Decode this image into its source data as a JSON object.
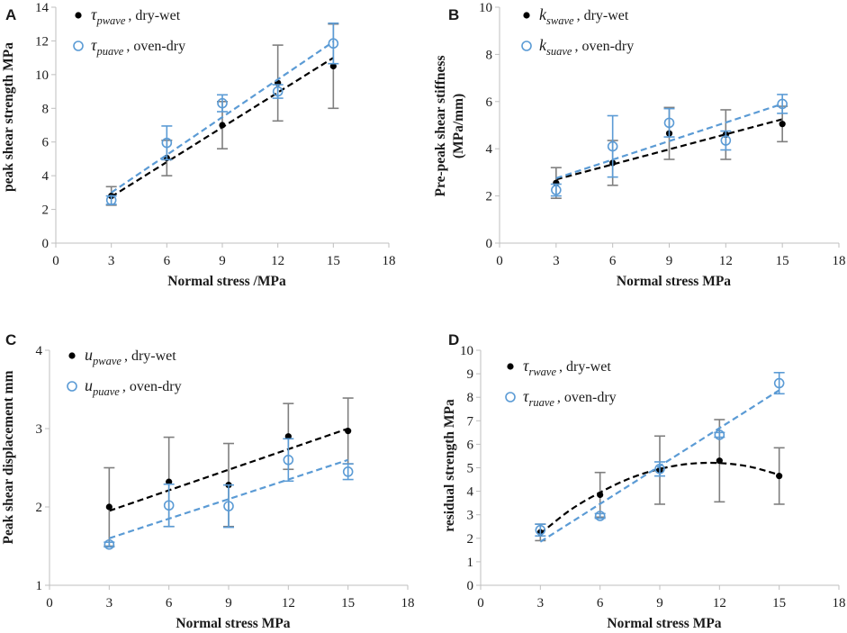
{
  "colors": {
    "dry_wet": "#000000",
    "oven_dry": "#5b9bd5",
    "error_bar": "#7f7f7f",
    "axis": "#bfbfbf"
  },
  "chart_data": [
    {
      "panel": "A",
      "type": "scatter",
      "xlabel": "Normal stress /MPa",
      "ylabel": "peak shear strength MPa",
      "xlim": [
        0,
        18
      ],
      "ylim": [
        0,
        14
      ],
      "xticks": [
        "0",
        "3",
        "6",
        "9",
        "12",
        "15",
        "18"
      ],
      "yticks": [
        "0",
        "2",
        "4",
        "6",
        "8",
        "10",
        "12",
        "14"
      ],
      "legend_position": "top-left",
      "series": [
        {
          "name": "dry-wet",
          "symbol": "τ",
          "subscript": "pwave",
          "label": ", dry-wet",
          "x": [
            3,
            6,
            9,
            12,
            15
          ],
          "y": [
            2.8,
            5.05,
            7.0,
            9.5,
            10.5
          ],
          "err": [
            0.55,
            1.05,
            1.4,
            2.25,
            2.5
          ],
          "trend": "linear",
          "trend_points": [
            [
              3,
              2.75
            ],
            [
              15,
              11.0
            ]
          ]
        },
        {
          "name": "oven-dry",
          "symbol": "τ",
          "subscript": "puave",
          "label": ", oven-dry",
          "x": [
            3,
            6,
            9,
            12,
            15
          ],
          "y": [
            2.55,
            5.95,
            8.3,
            9.0,
            11.85
          ],
          "err": [
            0.25,
            1.0,
            0.5,
            0.4,
            1.2
          ],
          "trend": "linear",
          "trend_points": [
            [
              3,
              3.0
            ],
            [
              15,
              11.95
            ]
          ]
        }
      ]
    },
    {
      "panel": "B",
      "type": "scatter",
      "xlabel": "Normal stress MPa",
      "ylabel": "Pre-peak shear stiffness (MPa/mm)",
      "ylabel_lines": [
        "Pre-peak shear stiffness",
        "(MPa/mm)"
      ],
      "xlim": [
        0,
        18
      ],
      "ylim": [
        0,
        10
      ],
      "xticks": [
        "0",
        "3",
        "6",
        "9",
        "12",
        "15",
        "18"
      ],
      "yticks": [
        "0",
        "2",
        "4",
        "6",
        "8",
        "10"
      ],
      "legend_position": "top-left",
      "series": [
        {
          "name": "dry-wet",
          "symbol": "k",
          "subscript": "swave",
          "label": ", dry-wet",
          "x": [
            3,
            6,
            9,
            12,
            15
          ],
          "y": [
            2.55,
            3.4,
            4.65,
            4.6,
            5.05
          ],
          "err": [
            0.65,
            0.95,
            1.1,
            1.05,
            0.75
          ],
          "trend": "linear",
          "trend_points": [
            [
              3,
              2.7
            ],
            [
              15,
              5.25
            ]
          ]
        },
        {
          "name": "oven-dry",
          "symbol": "k",
          "subscript": "suave",
          "label": ", oven-dry",
          "x": [
            3,
            6,
            9,
            12,
            15
          ],
          "y": [
            2.25,
            4.1,
            5.1,
            4.35,
            5.9
          ],
          "err": [
            0.25,
            1.3,
            0.6,
            0.4,
            0.4
          ],
          "trend": "linear",
          "trend_points": [
            [
              3,
              2.75
            ],
            [
              15,
              5.9
            ]
          ]
        }
      ]
    },
    {
      "panel": "C",
      "type": "scatter",
      "xlabel": "Normal stress MPa",
      "ylabel": "Peak shear displacement mm",
      "xlim": [
        0,
        18
      ],
      "ylim": [
        1,
        4
      ],
      "xticks": [
        "0",
        "3",
        "6",
        "9",
        "12",
        "15",
        "18"
      ],
      "yticks": [
        "1",
        "2",
        "3",
        "4"
      ],
      "legend_position": "top-left",
      "series": [
        {
          "name": "dry-wet",
          "symbol": "u",
          "subscript": "pwave",
          "label": ", dry-wet",
          "x": [
            3,
            6,
            9,
            12,
            15
          ],
          "y": [
            2.0,
            2.32,
            2.28,
            2.9,
            2.97
          ],
          "err": [
            0.5,
            0.57,
            0.53,
            0.42,
            0.42
          ],
          "trend": "linear",
          "trend_points": [
            [
              3,
              1.95
            ],
            [
              15,
              3.0
            ]
          ]
        },
        {
          "name": "oven-dry",
          "symbol": "u",
          "subscript": "puave",
          "label": ", oven-dry",
          "x": [
            3,
            6,
            9,
            12,
            15
          ],
          "y": [
            1.52,
            2.02,
            2.01,
            2.6,
            2.45
          ],
          "err": [
            0.03,
            0.27,
            0.27,
            0.27,
            0.1
          ],
          "trend": "linear",
          "trend_points": [
            [
              3,
              1.6
            ],
            [
              15,
              2.6
            ]
          ]
        }
      ]
    },
    {
      "panel": "D",
      "type": "scatter",
      "xlabel": "Normal stress MPa",
      "ylabel": "residual strength MPa",
      "xlim": [
        0,
        18
      ],
      "ylim": [
        0,
        10
      ],
      "xticks": [
        "0",
        "3",
        "6",
        "9",
        "12",
        "15",
        "18"
      ],
      "yticks": [
        "0",
        "1",
        "2",
        "3",
        "4",
        "5",
        "6",
        "7",
        "8",
        "9",
        "10"
      ],
      "legend_position": "top-left",
      "series": [
        {
          "name": "dry-wet",
          "symbol": "τ",
          "subscript": "rwave",
          "label": ", dry-wet",
          "x": [
            3,
            6,
            9,
            12,
            15
          ],
          "y": [
            2.25,
            3.85,
            4.9,
            5.3,
            4.65
          ],
          "err": [
            0.35,
            0.95,
            1.45,
            1.75,
            1.2
          ],
          "trend": "polynomial",
          "trend_points": [
            [
              3,
              2.2
            ],
            [
              4.5,
              3.2
            ],
            [
              6,
              3.95
            ],
            [
              7.5,
              4.55
            ],
            [
              9,
              4.95
            ],
            [
              10.5,
              5.17
            ],
            [
              12,
              5.2
            ],
            [
              13.5,
              5.05
            ],
            [
              15,
              4.7
            ]
          ]
        },
        {
          "name": "oven-dry",
          "symbol": "τ",
          "subscript": "ruave",
          "label": ", oven-dry",
          "x": [
            3,
            6,
            9,
            12,
            15
          ],
          "y": [
            2.35,
            2.95,
            4.95,
            6.4,
            8.6
          ],
          "err": [
            0.25,
            0.1,
            0.3,
            0.1,
            0.45
          ],
          "trend": "linear",
          "trend_points": [
            [
              3,
              1.85
            ],
            [
              15,
              8.3
            ]
          ]
        }
      ]
    }
  ]
}
